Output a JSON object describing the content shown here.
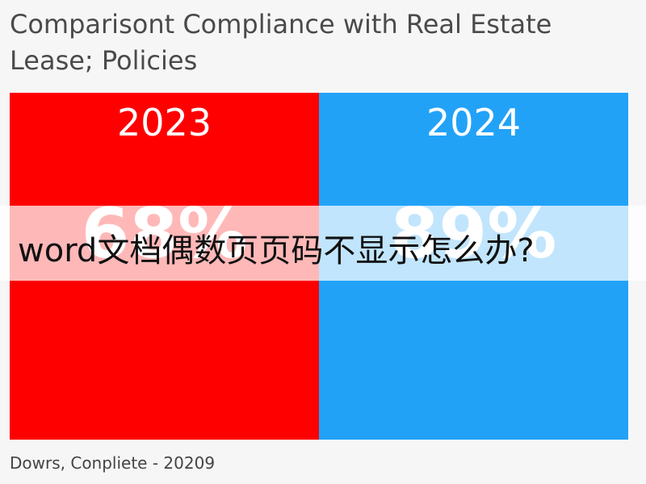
{
  "title": "Comparisont Compliance with Real Estate Lease; Policies",
  "panels": [
    {
      "label": "2023",
      "value": "68%",
      "color": "#ff0000"
    },
    {
      "label": "2024",
      "value": "89%",
      "color": "#22a2f7"
    }
  ],
  "banner": "word文档偶数页页码不显示怎么办?",
  "footer": "Dowrs, Conpliete - 20209"
}
